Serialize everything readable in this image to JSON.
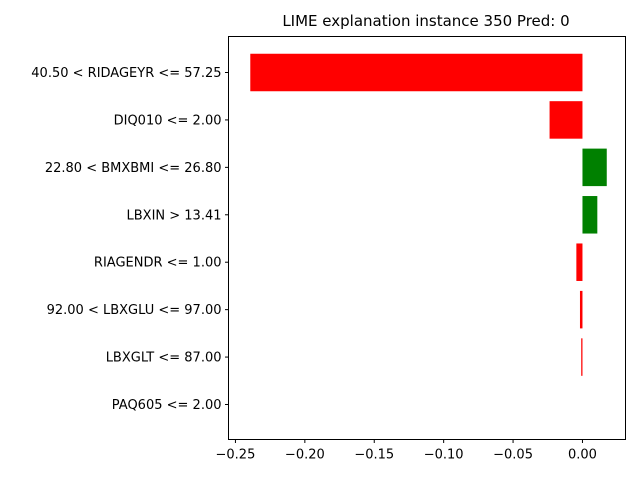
{
  "chart_data": {
    "type": "bar",
    "orientation": "horizontal",
    "title": "LIME explanation instance 350 Pred: 0",
    "xlabel": "",
    "ylabel": "",
    "xlim": [
      -0.255,
      0.031
    ],
    "xticks": [
      -0.25,
      -0.2,
      -0.15,
      -0.1,
      -0.05,
      0.0
    ],
    "xtick_labels": [
      "−0.25",
      "−0.20",
      "−0.15",
      "−0.10",
      "−0.05",
      "0.00"
    ],
    "grid": false,
    "categories": [
      "40.50 < RIDAGEYR <= 57.25",
      "DIQ010 <= 2.00",
      "22.80 < BMXBMI <= 26.80",
      "LBXIN > 13.41",
      "RIAGENDR <= 1.00",
      "92.00 < LBXGLU <= 97.00",
      "LBXGLT <= 87.00",
      "PAQ605 <= 2.00"
    ],
    "values": [
      -0.2393,
      -0.0237,
      0.0175,
      0.0107,
      -0.0044,
      -0.0018,
      -0.0009,
      0.0
    ],
    "colors": {
      "positive": "#008000",
      "negative": "#ff0000"
    }
  }
}
